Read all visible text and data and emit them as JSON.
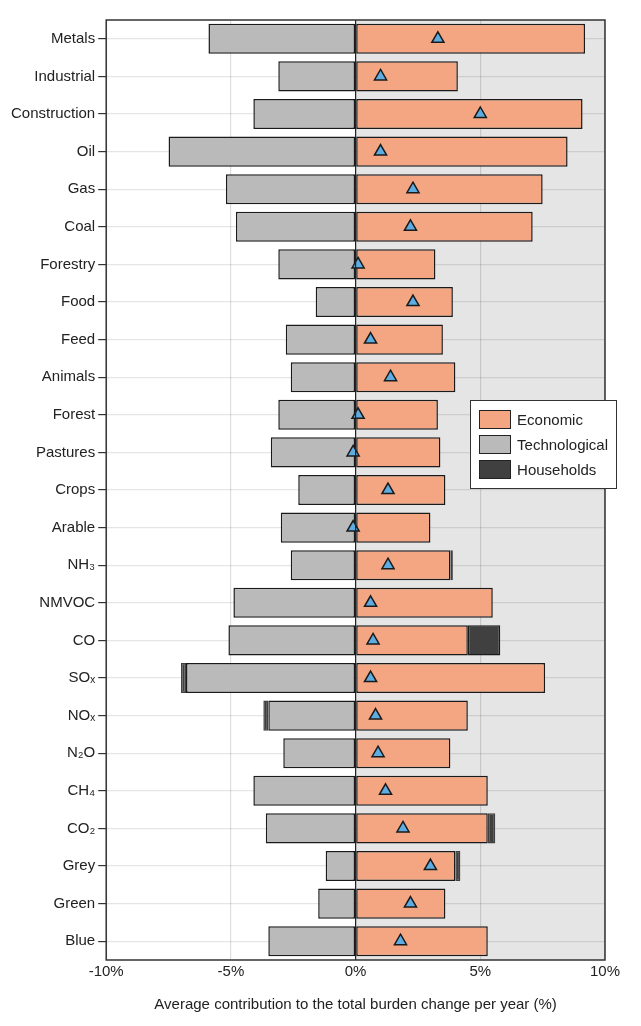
{
  "chart_data": {
    "type": "bar",
    "orientation": "horizontal",
    "stacked": true,
    "xlabel": "Average contribution to the total burden change per year (%)",
    "categories": [
      "Metals",
      "Industrial",
      "Construction",
      "Oil",
      "Gas",
      "Coal",
      "Forestry",
      "Food",
      "Feed",
      "Animals",
      "Forest",
      "Pastures",
      "Crops",
      "Arable",
      "NH₃",
      "NMVOC",
      "CO",
      "SOₓ",
      "NOₓ",
      "N₂O",
      "CH₄",
      "CO₂",
      "Grey",
      "Green",
      "Blue"
    ],
    "series": [
      {
        "name": "Economic",
        "color": "#f4a582",
        "values": [
          9.2,
          4.1,
          9.1,
          8.5,
          7.5,
          7.1,
          3.2,
          3.9,
          3.5,
          4.0,
          3.3,
          3.4,
          3.6,
          3.0,
          3.8,
          5.5,
          4.5,
          7.6,
          4.5,
          3.8,
          5.3,
          5.3,
          4.0,
          3.6,
          5.3
        ]
      },
      {
        "name": "Technological",
        "color": "#bababa",
        "values": [
          -5.9,
          -3.1,
          -4.1,
          -7.5,
          -5.2,
          -4.8,
          -3.1,
          -1.6,
          -2.8,
          -2.6,
          -3.1,
          -3.4,
          -2.3,
          -3.0,
          -2.6,
          -4.9,
          -5.1,
          -6.8,
          -3.5,
          -2.9,
          -4.1,
          -3.6,
          -1.2,
          -1.5,
          -3.5
        ]
      },
      {
        "name": "Households",
        "color": "#404040",
        "values": [
          null,
          null,
          null,
          null,
          null,
          null,
          null,
          null,
          null,
          null,
          null,
          null,
          null,
          null,
          0.1,
          null,
          1.3,
          -0.2,
          -0.2,
          null,
          null,
          0.3,
          0.2,
          null,
          null
        ]
      },
      {
        "type": "scatter",
        "marker": "triangle",
        "color": "#5dade2",
        "values": [
          3.3,
          1.0,
          5.0,
          1.0,
          2.3,
          2.2,
          0.1,
          2.3,
          0.6,
          1.4,
          0.1,
          -0.1,
          1.3,
          -0.1,
          1.3,
          0.6,
          0.7,
          0.6,
          0.8,
          0.9,
          1.2,
          1.9,
          3.0,
          2.2,
          1.8
        ]
      }
    ],
    "xlim": [
      -10,
      10
    ],
    "xticks": [
      {
        "value": -10,
        "label": "-10%"
      },
      {
        "value": -5,
        "label": "-5%"
      },
      {
        "value": 0,
        "label": "0%"
      },
      {
        "value": 5,
        "label": "5%"
      },
      {
        "value": 10,
        "label": "10%"
      }
    ],
    "bands": [
      {
        "axis": "x",
        "from": 0,
        "to": 10,
        "color": "#e5e5e5"
      }
    ],
    "grid": true,
    "legend": "right"
  }
}
